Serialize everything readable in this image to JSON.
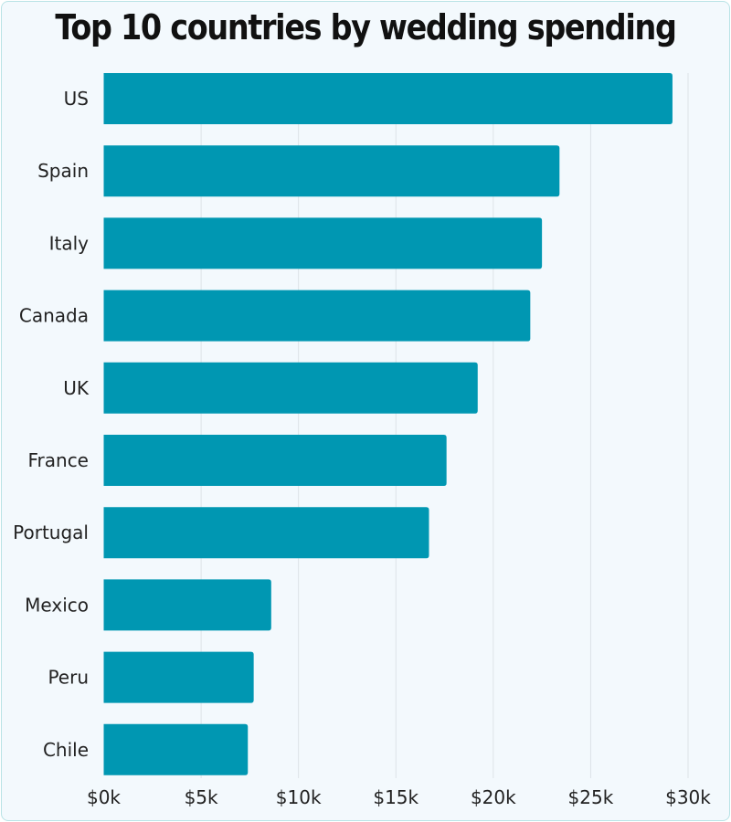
{
  "chart_data": {
    "type": "bar",
    "orientation": "horizontal",
    "title": "Top 10 countries by wedding spending",
    "categories": [
      "US",
      "Spain",
      "Italy",
      "Canada",
      "UK",
      "France",
      "Portugal",
      "Mexico",
      "Peru",
      "Chile"
    ],
    "values": [
      29.2,
      23.4,
      22.5,
      21.9,
      19.2,
      17.6,
      16.7,
      8.6,
      7.7,
      7.4
    ],
    "unit": "thousand USD",
    "xlim": [
      0,
      30
    ],
    "xticks": [
      0,
      5,
      10,
      15,
      20,
      25,
      30
    ],
    "xtick_labels": [
      "$0k",
      "$5k",
      "$10k",
      "$15k",
      "$20k",
      "$25k",
      "$30k"
    ],
    "xlabel": "",
    "ylabel": "",
    "grid": "vertical",
    "bar_color": "#0097b2"
  }
}
